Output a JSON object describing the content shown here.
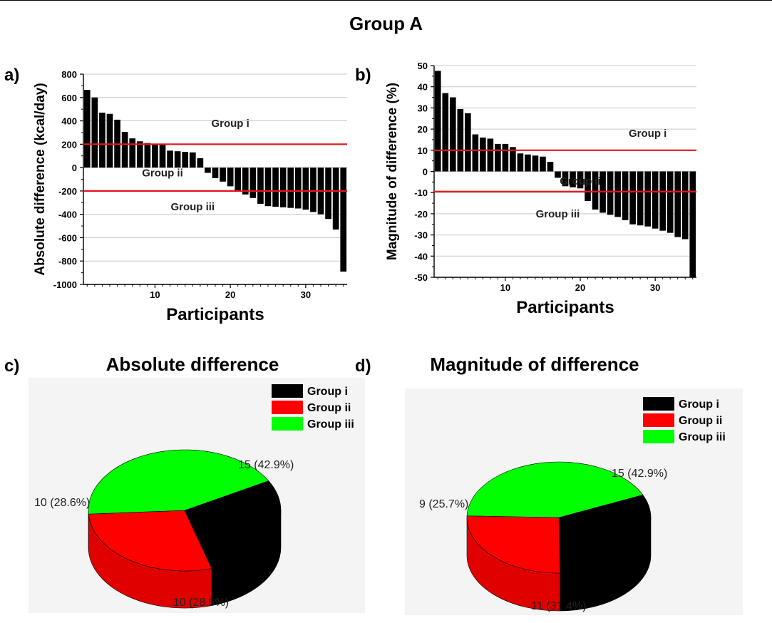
{
  "figure": {
    "title": "Group A",
    "panel_labels": {
      "a": "a)",
      "b": "b)",
      "c": "c)",
      "d": "d)"
    }
  },
  "chart_data": [
    {
      "type": "bar",
      "panel": "a)",
      "xlabel": "Participants",
      "ylabel": "Absolute difference (kcal/day)",
      "xlim": [
        0.5,
        35.5
      ],
      "ylim": [
        -1000,
        800
      ],
      "xticks": [
        10,
        20,
        30
      ],
      "yticks": [
        800,
        600,
        400,
        200,
        0,
        -200,
        -400,
        -600,
        -800,
        -1000
      ],
      "grid": true,
      "x": [
        1,
        2,
        3,
        4,
        5,
        6,
        7,
        8,
        9,
        10,
        11,
        12,
        13,
        14,
        15,
        16,
        17,
        18,
        19,
        20,
        21,
        22,
        23,
        24,
        25,
        26,
        27,
        28,
        29,
        30,
        31,
        32,
        33,
        34,
        35
      ],
      "values": [
        665,
        600,
        470,
        460,
        410,
        305,
        250,
        225,
        210,
        200,
        195,
        145,
        140,
        135,
        130,
        80,
        -45,
        -90,
        -120,
        -160,
        -200,
        -230,
        -260,
        -310,
        -330,
        -335,
        -340,
        -345,
        -350,
        -360,
        -380,
        -400,
        -440,
        -530,
        -890
      ],
      "reference_lines": [
        200,
        -200
      ],
      "region_labels": [
        {
          "text": "Group i",
          "x": 20,
          "y": 380
        },
        {
          "text": "Group ii",
          "x": 11,
          "y": -45
        },
        {
          "text": "Group iii",
          "x": 15,
          "y": -335
        }
      ]
    },
    {
      "type": "bar",
      "panel": "b)",
      "xlabel": "Participants",
      "ylabel": "Magnitude of difference (%)",
      "xlim": [
        0.5,
        35.5
      ],
      "ylim": [
        -50,
        50
      ],
      "xticks": [
        10,
        20,
        30
      ],
      "yticks": [
        50,
        40,
        30,
        20,
        10,
        0,
        -10,
        -20,
        -30,
        -40,
        -50
      ],
      "grid": true,
      "x": [
        1,
        2,
        3,
        4,
        5,
        6,
        7,
        8,
        9,
        10,
        11,
        12,
        13,
        14,
        15,
        16,
        17,
        18,
        19,
        20,
        21,
        22,
        23,
        24,
        25,
        26,
        27,
        28,
        29,
        30,
        31,
        32,
        33,
        34,
        35
      ],
      "values": [
        47.5,
        37,
        35,
        29.5,
        27.5,
        17.5,
        16,
        15.5,
        13,
        13,
        11.5,
        8.5,
        8,
        7.5,
        7,
        4.5,
        -3,
        -7,
        -7.5,
        -8,
        -14,
        -18,
        -19.5,
        -20.5,
        -21.5,
        -23,
        -25,
        -25.5,
        -26,
        -27,
        -28,
        -29,
        -31,
        -32,
        -50
      ],
      "reference_lines": [
        10,
        -9.5
      ],
      "region_labels": [
        {
          "text": "Group i",
          "x": 29,
          "y": 18
        },
        {
          "text": "Group ii",
          "x": 20,
          "y": -4.5
        },
        {
          "text": "Group iii",
          "x": 17,
          "y": -20
        }
      ]
    },
    {
      "type": "pie",
      "panel": "c)",
      "title": "Absolute difference",
      "labels": [
        "Group i",
        "Group ii",
        "Group iii"
      ],
      "values": [
        10,
        10,
        15
      ],
      "slice_labels": [
        "10 (28.6%)",
        "10 (28.6%)",
        "15 (42.9%)"
      ],
      "colors": [
        "#000000",
        "#ff0000",
        "#00ff00"
      ],
      "legend": "top-right"
    },
    {
      "type": "pie",
      "panel": "d)",
      "title": "Magnitude of difference",
      "labels": [
        "Group i",
        "Group ii",
        "Group iii"
      ],
      "values": [
        11,
        9,
        15
      ],
      "slice_labels": [
        "11 (31.4%)",
        "9 (25.7%)",
        "15 (42.9%)"
      ],
      "colors": [
        "#000000",
        "#ff0000",
        "#00ff00"
      ],
      "legend": "top-right"
    }
  ]
}
